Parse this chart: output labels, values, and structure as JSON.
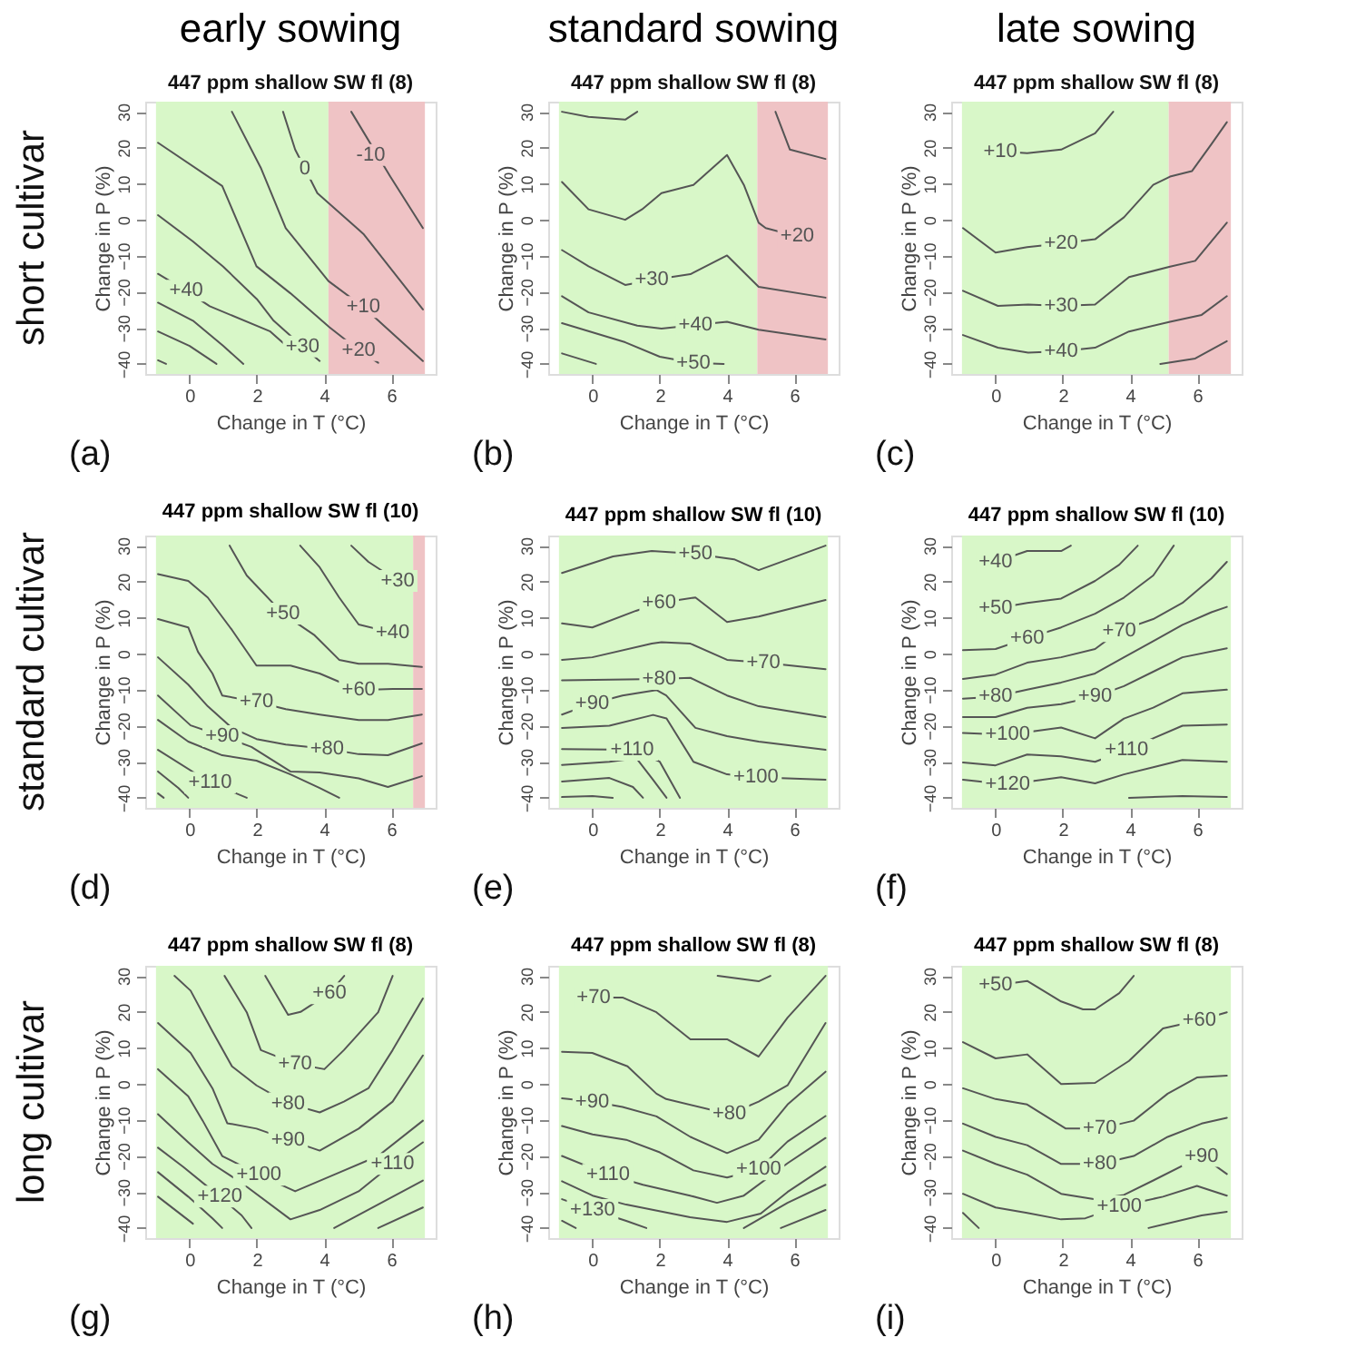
{
  "chart_data": [
    {
      "type": "line",
      "title": "early sowing",
      "subtitle": "447 ppm shallow SW fl (8)",
      "xlabel": "Change in T (°C)",
      "ylabel": "Change in P (%)",
      "xlim": [
        -1.32,
        7.32
      ],
      "ylim": [
        -42.8,
        32.8
      ],
      "xticks": [
        0,
        2,
        4,
        6
      ],
      "yticks": [
        -40,
        -30,
        -20,
        -10,
        0,
        10,
        20,
        30
      ],
      "bands": [
        {
          "axis": "x",
          "from": -1,
          "to": 4.13,
          "color": "#d8f7c8"
        },
        {
          "axis": "x",
          "from": 4.13,
          "to": 7,
          "color": "#efc3c5"
        }
      ],
      "series": [
        {
          "color": "#555555",
          "x": [
            4.81,
            5.97,
            6.94
          ],
          "values": [
            30,
            12,
            -2.3
          ]
        },
        {
          "color": "#555555",
          "x": [
            2.78,
            3.14,
            3.43,
            3.8,
            5.17,
            6.94
          ],
          "values": [
            30,
            19.5,
            14.2,
            7.4,
            -3.9,
            -24.9
          ]
        },
        {
          "color": "#555555",
          "x": [
            1.26,
            2.13,
            2.86,
            4.13,
            5.17,
            6.94
          ],
          "values": [
            30,
            14.2,
            -2.3,
            -17,
            -24.2,
            -39.2
          ]
        },
        {
          "color": "#555555",
          "x": [
            -0.94,
            0.97,
            1.23,
            1.99,
            3.0,
            4.16,
            5.03,
            5.61
          ],
          "values": [
            21.4,
            9.4,
            3.7,
            -12.9,
            -20.4,
            -29.8,
            -36.2,
            -39.7
          ]
        },
        {
          "color": "#555555",
          "x": [
            -0.94,
            0.1,
            1.0,
            2.0,
            2.5,
            3.36,
            3.87
          ],
          "values": [
            1.3,
            -6,
            -13,
            -22,
            -28,
            -35.2,
            -39.2
          ]
        },
        {
          "color": "#555555",
          "x": [
            -0.94,
            -0.1,
            0.6,
            2.4,
            3.0
          ],
          "values": [
            -15,
            -19.7,
            -24,
            -31,
            -36
          ]
        },
        {
          "color": "#555555",
          "x": [
            -0.94,
            0.1,
            1.0,
            1.6
          ],
          "values": [
            -23,
            -28,
            -35,
            -40
          ]
        },
        {
          "color": "#555555",
          "x": [
            -0.94,
            0,
            0.8
          ],
          "values": [
            -31,
            -35,
            -40
          ]
        },
        {
          "color": "#555555",
          "x": [
            -0.94,
            -0.7
          ],
          "values": [
            -39,
            -40
          ]
        }
      ],
      "annotations": [
        {
          "text": "-10",
          "x": 5.39,
          "y": 18
        },
        {
          "text": "0",
          "x": 3.43,
          "y": 14.2
        },
        {
          "text": "+10",
          "x": 5.17,
          "y": -24.2
        },
        {
          "text": "+20",
          "x": 5.03,
          "y": -36.2
        },
        {
          "text": "+30",
          "x": 3.36,
          "y": -35.2
        },
        {
          "text": "+40",
          "x": -0.1,
          "y": -19.7
        },
        "(a)",
        "short cultivar"
      ]
    },
    {
      "type": "line",
      "title": "standard sowing",
      "subtitle": "447 ppm shallow SW fl (8)",
      "xlabel": "Change in T (°C)",
      "ylabel": "Change in P (%)",
      "xlim": [
        -1.32,
        7.32
      ],
      "ylim": [
        -42.8,
        32.8
      ],
      "xticks": [
        0,
        2,
        4,
        6
      ],
      "yticks": [
        -40,
        -30,
        -20,
        -10,
        0,
        10,
        20,
        30
      ],
      "bands": [
        {
          "axis": "x",
          "from": -1,
          "to": 4.9,
          "color": "#d8f7c8"
        },
        {
          "axis": "x",
          "from": 4.9,
          "to": 7,
          "color": "#efc3c5"
        }
      ],
      "series": [
        {
          "color": "#555555",
          "x": [
            -0.91,
            -0.12,
            0.97,
            1.33
          ],
          "values": [
            30,
            28.6,
            27.8,
            30
          ]
        },
        {
          "color": "#555555",
          "x": [
            -0.91,
            -0.12,
            0.97,
            1.47,
            2.05,
            3.0,
            4.0,
            4.5,
            4.94,
            5.15,
            6.09
          ],
          "values": [
            10.5,
            2.9,
            0,
            2.9,
            7.4,
            9.7,
            18,
            9.7,
            -0.8,
            -2.3,
            -4.6
          ]
        },
        {
          "color": "#555555",
          "x": [
            5.44,
            5.87,
            6.93
          ],
          "values": [
            30,
            19.5,
            16.9
          ]
        },
        {
          "color": "#555555",
          "x": [
            -0.91,
            -0.12,
            0.97,
            1.76,
            2.91,
            4.0,
            4.94,
            6.93
          ],
          "values": [
            -8.4,
            -12.9,
            -18.1,
            -16.7,
            -15.1,
            -9.9,
            -18.6,
            -21.6
          ]
        },
        {
          "color": "#555555",
          "x": [
            -0.91,
            -0.12,
            1.33,
            2.05,
            3.06,
            4.0,
            4.94,
            6.93
          ],
          "values": [
            -21.2,
            -25.7,
            -29.4,
            -30.2,
            -29.2,
            -28.3,
            -30.5,
            -33.2
          ]
        },
        {
          "color": "#555555",
          "x": [
            -0.91,
            0.97,
            2.0,
            3.0,
            3.9
          ],
          "values": [
            -28.7,
            -34,
            -38,
            -39.7,
            -40
          ]
        },
        {
          "color": "#555555",
          "x": [
            -0.91,
            0.1
          ],
          "values": [
            -37.1,
            -40
          ]
        }
      ],
      "annotations": [
        {
          "text": "+20",
          "x": 6.09,
          "y": -4.6
        },
        {
          "text": "+30",
          "x": 1.76,
          "y": -16.7
        },
        {
          "text": "+40",
          "x": 3.06,
          "y": -29.2
        },
        {
          "text": "+50",
          "x": 3.0,
          "y": -39.7
        },
        "(b)"
      ]
    },
    {
      "type": "line",
      "title": "late sowing",
      "subtitle": "447 ppm shallow SW fl (8)",
      "xlabel": "Change in T (°C)",
      "ylabel": "Change in P (%)",
      "xlim": [
        -1.32,
        7.32
      ],
      "ylim": [
        -42.8,
        32.8
      ],
      "xticks": [
        0,
        2,
        4,
        6
      ],
      "yticks": [
        -40,
        -30,
        -20,
        -10,
        0,
        10,
        20,
        30
      ],
      "bands": [
        {
          "axis": "x",
          "from": -1,
          "to": 5.15,
          "color": "#d8f7c8"
        },
        {
          "axis": "x",
          "from": 5.15,
          "to": 7,
          "color": "#efc3c5"
        }
      ],
      "series": [
        {
          "color": "#555555",
          "x": [
            0.14,
            0.94,
            1.95,
            2.96,
            3.5
          ],
          "values": [
            19,
            18.5,
            19.5,
            24,
            30
          ]
        },
        {
          "color": "#555555",
          "x": [
            -0.97,
            0,
            0.94,
            1.95,
            2.96,
            3.82,
            4.69,
            5.19,
            5.84,
            6.42,
            6.88
          ],
          "values": [
            -2.3,
            -9.1,
            -7.6,
            -6.6,
            -5.4,
            0.7,
            9.7,
            12,
            13.5,
            21,
            27.1
          ]
        },
        {
          "color": "#555555",
          "x": [
            -0.97,
            0.07,
            0.97,
            1.95,
            2.96,
            3.97,
            5.19,
            5.94,
            6.88
          ],
          "values": [
            -19.7,
            -23.9,
            -23.5,
            -23.9,
            -23.5,
            -15.9,
            -13,
            -11.4,
            -0.8
          ]
        },
        {
          "color": "#555555",
          "x": [
            -0.97,
            0.07,
            0.97,
            1.95,
            2.96,
            3.97,
            5.19,
            6.13,
            6.88
          ],
          "values": [
            -32,
            -35.5,
            -36.9,
            -36.5,
            -35.5,
            -31,
            -28.3,
            -26.4,
            -21.2
          ]
        },
        {
          "color": "#555555",
          "x": [
            4.9,
            5.94,
            6.88
          ],
          "values": [
            -40,
            -38.5,
            -33.7
          ]
        }
      ],
      "annotations": [
        {
          "text": "+10",
          "x": 0.14,
          "y": 19
        },
        {
          "text": "+20",
          "x": 1.95,
          "y": -6.6
        },
        {
          "text": "+30",
          "x": 1.95,
          "y": -23.9
        },
        {
          "text": "+40",
          "x": 1.95,
          "y": -36.5
        },
        "(c)"
      ]
    },
    {
      "type": "line",
      "title": "447 ppm shallow SW fl (10)",
      "xlabel": "Change in T (°C)",
      "ylabel": "Change in P (%)",
      "xlim": [
        -1.32,
        7.32
      ],
      "ylim": [
        -42.8,
        32.8
      ],
      "xticks": [
        0,
        2,
        4,
        6
      ],
      "yticks": [
        -40,
        -30,
        -20,
        -10,
        0,
        10,
        20,
        30
      ],
      "bands": [
        {
          "axis": "x",
          "from": -1,
          "to": 6.65,
          "color": "#d8f7c8"
        },
        {
          "axis": "x",
          "from": 6.65,
          "to": 7,
          "color": "#efc3c5"
        }
      ],
      "series": [
        {
          "color": "#555555",
          "x": [
            4.81,
            5.32,
            6.19
          ],
          "values": [
            30,
            25.5,
            20.2
          ]
        },
        {
          "color": "#555555",
          "x": [
            3.29,
            3.87,
            4.45,
            5.03,
            6.04
          ],
          "values": [
            30,
            24,
            15.6,
            8.1,
            5.8
          ]
        },
        {
          "color": "#555555",
          "x": [
            1.19,
            1.7,
            2.78,
            3.72,
            4.45,
            5.03,
            5.9,
            6.91
          ],
          "values": [
            30,
            21.7,
            11.1,
            5.1,
            -1.7,
            -2.8,
            -2.8,
            -3.7
          ]
        },
        {
          "color": "#555555",
          "x": [
            -0.94,
            -0.04,
            0.54,
            1.26,
            1.99,
            3.0,
            3.87,
            5.03,
            6.04,
            6.91
          ],
          "values": [
            22.1,
            20.2,
            15.6,
            6.6,
            -3.3,
            -3.3,
            -5.5,
            -10.1,
            -9.8,
            -9.8
          ]
        },
        {
          "color": "#555555",
          "x": [
            -0.94,
            -0.04,
            0.25,
            0.68,
            0.97,
            1.99,
            2.86,
            3.87,
            5.03,
            5.9,
            6.91
          ],
          "values": [
            9.6,
            7.3,
            0.5,
            -5.5,
            -11.6,
            -13.4,
            -15.4,
            -16.9,
            -18.4,
            -18.4,
            -16.9
          ]
        },
        {
          "color": "#555555",
          "x": [
            -0.94,
            -0.04,
            0.54,
            1.26,
            1.99,
            2.86,
            4.09,
            5.03,
            5.9,
            6.91
          ],
          "values": [
            -1,
            -8.6,
            -14.6,
            -20.6,
            -23.7,
            -25.2,
            -26.4,
            -27.9,
            -28.2,
            -24.9
          ]
        },
        {
          "color": "#555555",
          "x": [
            -0.94,
            0.03,
            0.97,
            1.84,
            3.0,
            3.87,
            5.03,
            5.9,
            6.91
          ],
          "values": [
            -11.6,
            -19.9,
            -22.9,
            -25.9,
            -32.7,
            -33,
            -34.6,
            -37,
            -34
          ]
        },
        {
          "color": "#555555",
          "x": [
            -0.94,
            -0.04,
            0.97,
            1.99,
            3.0,
            3.87,
            4.45
          ],
          "values": [
            -18.4,
            -24.4,
            -28.2,
            -29.7,
            -33.5,
            -37.3,
            -40
          ]
        },
        {
          "color": "#555555",
          "x": [
            -0.94,
            0.61,
            1.7
          ],
          "values": [
            -26.7,
            -35.8,
            -40
          ]
        },
        {
          "color": "#555555",
          "x": [
            -0.94,
            -0.33,
            -0.04
          ],
          "values": [
            -32.7,
            -37.3,
            -40
          ]
        },
        {
          "color": "#555555",
          "x": [
            -0.94,
            -0.77
          ],
          "values": [
            -38.8,
            -40
          ]
        }
      ],
      "annotations": [
        {
          "text": "+30",
          "x": 6.19,
          "y": 20.2
        },
        {
          "text": "+40",
          "x": 6.04,
          "y": 5.8
        },
        {
          "text": "+50",
          "x": 2.78,
          "y": 11.1
        },
        {
          "text": "+60",
          "x": 5.03,
          "y": -10.1
        },
        {
          "text": "+70",
          "x": 1.99,
          "y": -13.4
        },
        {
          "text": "+80",
          "x": 4.09,
          "y": -26.4
        },
        {
          "text": "+90",
          "x": 0.97,
          "y": -22.9
        },
        {
          "text": "+110",
          "x": 0.61,
          "y": -35.8
        },
        "(d)",
        "standard cultivar"
      ]
    },
    {
      "type": "line",
      "title": "447 ppm shallow SW fl (10)",
      "xlabel": "Change in T (°C)",
      "ylabel": "Change in P (%)",
      "xlim": [
        -1.32,
        7.32
      ],
      "ylim": [
        -42.8,
        32.8
      ],
      "xticks": [
        0,
        2,
        4,
        6
      ],
      "yticks": [
        -40,
        -30,
        -20,
        -10,
        0,
        10,
        20,
        30
      ],
      "bands": [
        {
          "axis": "x",
          "from": -1,
          "to": 7,
          "color": "#d8f7c8"
        }
      ],
      "series": [
        {
          "color": "#555555",
          "x": [
            -0.91,
            0.61,
            1.76,
            3.06,
            4.21,
            4.94,
            6.93
          ],
          "values": [
            22.4,
            27,
            28.5,
            27.7,
            26.2,
            23.2,
            30
          ]
        },
        {
          "color": "#555555",
          "x": [
            -0.91,
            -0.01,
            1.29,
            1.98,
            3.06,
            4.0,
            4.94,
            6.93
          ],
          "values": [
            8.4,
            7.3,
            11.9,
            14.1,
            15.6,
            8.8,
            10.3,
            14.9
          ]
        },
        {
          "color": "#555555",
          "x": [
            -0.91,
            -0.01,
            1.76,
            2.05,
            2.91,
            4.0,
            5.08,
            6.93
          ],
          "values": [
            -1.7,
            -1,
            2.8,
            3.2,
            2.8,
            -1.7,
            -2.5,
            -4.3
          ]
        },
        {
          "color": "#555555",
          "x": [
            -0.91,
            1.98,
            2.91,
            4.0,
            4.94,
            6.93
          ],
          "values": [
            -7.4,
            -7,
            -6.7,
            -11.6,
            -14.6,
            -17.6
          ]
        },
        {
          "color": "#555555",
          "x": [
            -0.91,
            -0.01,
            0.89,
            1.9,
            2.19,
            3.06,
            4.0,
            4.94,
            6.93
          ],
          "values": [
            -16.9,
            -13.8,
            -11.6,
            -10.1,
            -11.6,
            -20.6,
            -22.9,
            -24.4,
            -26.7
          ]
        },
        {
          "color": "#555555",
          "x": [
            -0.91,
            0.5,
            1.8,
            2.2,
            3.0,
            4.0,
            4.86,
            6.93
          ],
          "values": [
            -20.6,
            -20,
            -17,
            -18,
            -30,
            -33.5,
            -34.3,
            -35
          ]
        },
        {
          "color": "#555555",
          "x": [
            -0.91,
            1.18,
            2.0,
            2.6
          ],
          "values": [
            -26.5,
            -26.7,
            -30,
            -40
          ]
        },
        {
          "color": "#555555",
          "x": [
            -0.91,
            0.5,
            1.3,
            1.8,
            2.2
          ],
          "values": [
            -30.9,
            -30,
            -29,
            -35,
            -40
          ]
        },
        {
          "color": "#555555",
          "x": [
            -0.91,
            0.5,
            1.2,
            1.5
          ],
          "values": [
            -35.5,
            -34.5,
            -37,
            -40
          ]
        },
        {
          "color": "#555555",
          "x": [
            -0.91,
            0,
            0.6
          ],
          "values": [
            -39.8,
            -39.5,
            -40
          ]
        }
      ],
      "annotations": [
        {
          "text": "+50",
          "x": 3.06,
          "y": 27.7
        },
        {
          "text": "+60",
          "x": 1.98,
          "y": 14.1
        },
        {
          "text": "+70",
          "x": 5.08,
          "y": -2.5
        },
        {
          "text": "+80",
          "x": 1.98,
          "y": -7
        },
        {
          "text": "+90",
          "x": -0.01,
          "y": -13.8
        },
        {
          "text": "+100",
          "x": 4.86,
          "y": -34.3
        },
        {
          "text": "+110",
          "x": 1.18,
          "y": -26.7
        },
        "(e)"
      ]
    },
    {
      "type": "line",
      "title": "447 ppm shallow SW fl (10)",
      "xlabel": "Change in T (°C)",
      "ylabel": "Change in P (%)",
      "xlim": [
        -1.32,
        7.32
      ],
      "ylim": [
        -42.8,
        32.8
      ],
      "xticks": [
        0,
        2,
        4,
        6
      ],
      "yticks": [
        -40,
        -30,
        -20,
        -10,
        0,
        10,
        20,
        30
      ],
      "bands": [
        {
          "axis": "x",
          "from": -1,
          "to": 7,
          "color": "#d8f7c8"
        }
      ],
      "series": [
        {
          "color": "#555555",
          "x": [
            0,
            0.94,
            1.95,
            2.24
          ],
          "values": [
            25.5,
            28.5,
            28.5,
            30
          ]
        },
        {
          "color": "#555555",
          "x": [
            0,
            0.94,
            1.95,
            2.96,
            3.68,
            4.23
          ],
          "values": [
            12.6,
            14.1,
            15.3,
            20.2,
            24.7,
            30
          ]
        },
        {
          "color": "#555555",
          "x": [
            -0.97,
            0,
            0.94,
            1.95,
            2.96,
            3.82,
            4.69,
            5.3
          ],
          "values": [
            1,
            1.3,
            4.3,
            7.3,
            11.1,
            15.6,
            21.7,
            30
          ]
        },
        {
          "color": "#555555",
          "x": [
            -0.97,
            0,
            0.94,
            1.95,
            2.96,
            3.68,
            4.69,
            5.56,
            6.42,
            6.88
          ],
          "values": [
            -7,
            -5.8,
            -2.5,
            -1,
            1.3,
            6.3,
            9.6,
            14.1,
            20.9,
            25.5
          ]
        },
        {
          "color": "#555555",
          "x": [
            -0.97,
            0,
            0.94,
            1.95,
            2.96,
            3.82,
            4.69,
            5.56,
            6.42,
            6.88
          ],
          "values": [
            -12.5,
            -11.9,
            -10,
            -8,
            -5.5,
            -1,
            3.5,
            8,
            11.5,
            13
          ]
        },
        {
          "color": "#555555",
          "x": [
            -0.97,
            0,
            0.94,
            1.95,
            2.96,
            3.82,
            4.69,
            5.56,
            6.88
          ],
          "values": [
            -17.6,
            -17.6,
            -15,
            -14,
            -11.9,
            -9,
            -5,
            -1,
            1.5
          ]
        },
        {
          "color": "#555555",
          "x": [
            -0.97,
            0.36,
            1.95,
            2.96,
            3.82,
            4.69,
            5.56,
            6.88
          ],
          "values": [
            -22,
            -22.5,
            -20.5,
            -23.5,
            -18,
            -15,
            -11,
            -10
          ]
        },
        {
          "color": "#555555",
          "x": [
            -0.97,
            0,
            0.94,
            1.95,
            2.96,
            3.9,
            4.69,
            5.56,
            6.88
          ],
          "values": [
            -30.2,
            -31,
            -28,
            -28.5,
            -30,
            -26.7,
            -23.5,
            -20,
            -19.7
          ]
        },
        {
          "color": "#555555",
          "x": [
            -0.97,
            0.36,
            1.95,
            2.96,
            3.82,
            4.69,
            5.56,
            6.88
          ],
          "values": [
            -35,
            -36.3,
            -34.3,
            -36,
            -33.5,
            -31.5,
            -29.5,
            -30
          ]
        },
        {
          "color": "#555555",
          "x": [
            3.97,
            5.56,
            6.88
          ],
          "values": [
            -40,
            -39.5,
            -39.8
          ]
        }
      ],
      "annotations": [
        {
          "text": "+40",
          "x": 0,
          "y": 25.5
        },
        {
          "text": "+50",
          "x": 0,
          "y": 12.6
        },
        {
          "text": "+60",
          "x": 0.94,
          "y": 4.3
        },
        {
          "text": "+70",
          "x": 3.68,
          "y": 6.3
        },
        {
          "text": "+80",
          "x": 0,
          "y": -11.9
        },
        {
          "text": "+90",
          "x": 2.96,
          "y": -11.9
        },
        {
          "text": "+100",
          "x": 0.36,
          "y": -22.5
        },
        {
          "text": "+110",
          "x": 3.9,
          "y": -26.7
        },
        {
          "text": "+120",
          "x": 0.36,
          "y": -36.3
        },
        "(f)"
      ]
    },
    {
      "type": "line",
      "title": "447 ppm shallow SW fl (8)",
      "xlabel": "Change in T (°C)",
      "ylabel": "Change in P (%)",
      "xlim": [
        -1.32,
        7.32
      ],
      "ylim": [
        -42.8,
        32.8
      ],
      "xticks": [
        0,
        2,
        4,
        6
      ],
      "yticks": [
        -40,
        -30,
        -20,
        -10,
        0,
        10,
        20,
        30
      ],
      "bands": [
        {
          "axis": "x",
          "from": -1,
          "to": 7,
          "color": "#d8f7c8"
        }
      ],
      "series": [
        {
          "color": "#555555",
          "x": [
            2.25,
            2.93,
            3.3,
            4.16,
            4.6
          ],
          "values": [
            30,
            19.2,
            20,
            25.2,
            30
          ]
        },
        {
          "color": "#555555",
          "x": [
            1.04,
            1.7,
            2.12,
            3.14,
            4.01,
            4.59,
            5.61,
            6.04
          ],
          "values": [
            30,
            19.9,
            9.4,
            5.6,
            4.1,
            9.4,
            19.9,
            30
          ]
        },
        {
          "color": "#555555",
          "x": [
            -0.45,
            0.03,
            0.68,
            1.26,
            1.99,
            2.93,
            3.87,
            4.59,
            5.32,
            6.04,
            6.94
          ],
          "values": [
            30,
            25.9,
            14.6,
            4.9,
            -0.4,
            -5.4,
            -7.9,
            -4.9,
            -1.2,
            9.4,
            23.7
          ]
        },
        {
          "color": "#555555",
          "x": [
            -0.94,
            0.03,
            0.68,
            1.12,
            1.99,
            2.93,
            3.87,
            5.03,
            6.04,
            6.94
          ],
          "values": [
            16.9,
            8.6,
            -1.2,
            -10.9,
            -12.4,
            -15.5,
            -18.5,
            -12.4,
            -4.9,
            7.9
          ]
        },
        {
          "color": "#555555",
          "x": [
            -0.94,
            -0.04,
            0.39,
            0.97,
            2.06,
            3.14,
            4.3,
            5.61,
            6.94
          ],
          "values": [
            4.1,
            -3.4,
            -10.2,
            -20,
            -25.2,
            -29.8,
            -25.2,
            -20,
            -10.2
          ]
        },
        {
          "color": "#555555",
          "x": [
            -0.94,
            -0.04,
            0.68,
            1.55,
            3.0,
            3.87,
            5.03,
            6.04,
            6.94
          ],
          "values": [
            -8.4,
            -16.2,
            -22.2,
            -27.5,
            -37.6,
            -35,
            -29.8,
            -22.2,
            -16.2
          ]
        },
        {
          "color": "#555555",
          "x": [
            -0.94,
            -0.19,
            0.9,
            1.55,
            1.84
          ],
          "values": [
            -17.7,
            -23,
            -31.3,
            -36.5,
            -40
          ]
        },
        {
          "color": "#555555",
          "x": [
            -0.94,
            -0.04,
            0.68,
            0.97
          ],
          "values": [
            -24.5,
            -31.3,
            -37.3,
            -40
          ]
        },
        {
          "color": "#555555",
          "x": [
            -0.94,
            0.1
          ],
          "values": [
            -31.3,
            -38.8
          ]
        },
        {
          "color": "#555555",
          "x": [
            4.3,
            6.94
          ],
          "values": [
            -40,
            -26.8
          ]
        },
        {
          "color": "#555555",
          "x": [
            5.61,
            6.94
          ],
          "values": [
            -40,
            -34.3
          ]
        }
      ],
      "annotations": [
        {
          "text": "+60",
          "x": 4.16,
          "y": 25.2
        },
        {
          "text": "+70",
          "x": 3.14,
          "y": 5.6
        },
        {
          "text": "+80",
          "x": 2.93,
          "y": -5.4
        },
        {
          "text": "+90",
          "x": 2.93,
          "y": -15.5
        },
        {
          "text": "+100",
          "x": 2.06,
          "y": -25.2
        },
        {
          "text": "+110",
          "x": 6.04,
          "y": -22.2
        },
        {
          "text": "+120",
          "x": 0.9,
          "y": -31.3
        },
        "(g)",
        "long cultivar"
      ]
    },
    {
      "type": "line",
      "title": "447 ppm shallow SW fl (8)",
      "xlabel": "Change in T (°C)",
      "ylabel": "Change in P (%)",
      "xlim": [
        -1.32,
        7.32
      ],
      "ylim": [
        -42.8,
        32.8
      ],
      "xticks": [
        0,
        2,
        4,
        6
      ],
      "yticks": [
        -40,
        -30,
        -20,
        -10,
        0,
        10,
        20,
        30
      ],
      "bands": [
        {
          "axis": "x",
          "from": -1,
          "to": 7,
          "color": "#d8f7c8"
        }
      ],
      "series": [
        {
          "color": "#555555",
          "x": [
            0.03,
            0.89,
            1.9,
            2.91,
            4.0,
            4.94,
            5.8,
            6.93
          ],
          "values": [
            24,
            24,
            19.9,
            12.4,
            12.4,
            7.6,
            18.4,
            30
          ]
        },
        {
          "color": "#555555",
          "x": [
            3.72,
            4.94,
            5.29
          ],
          "values": [
            30,
            28.5,
            30
          ]
        },
        {
          "color": "#555555",
          "x": [
            -0.91,
            -0.01,
            1.04,
            1.9,
            2.19,
            4.07,
            4.94,
            5.8,
            6.93
          ],
          "values": [
            8.9,
            8.6,
            4.9,
            -2.7,
            -4.2,
            -8.4,
            -4.9,
            -0.4,
            16.9
          ]
        },
        {
          "color": "#555555",
          "x": [
            -0.91,
            -0.01,
            0.89,
            1.9,
            2.91,
            4.0,
            4.94,
            5.8,
            6.93
          ],
          "values": [
            -4,
            -4.9,
            -6.4,
            -9,
            -14.7,
            -19.2,
            -15.5,
            -5.7,
            3.4
          ]
        },
        {
          "color": "#555555",
          "x": [
            -0.91,
            0,
            1.0,
            2.0,
            3.0,
            4.0,
            4.94,
            5.8,
            6.93
          ],
          "values": [
            -11.7,
            -14,
            -15.5,
            -19,
            -24,
            -26,
            -23.7,
            -16,
            -8.9
          ]
        },
        {
          "color": "#555555",
          "x": [
            -0.91,
            0.46,
            1.5,
            2.9,
            3.7,
            4.5,
            5.8,
            6.93
          ],
          "values": [
            -20,
            -25.2,
            -28,
            -31,
            -33,
            -31,
            -22,
            -15
          ]
        },
        {
          "color": "#555555",
          "x": [
            -0.91,
            0,
            1.0,
            2.9,
            4.0,
            5.0,
            5.8,
            6.93
          ],
          "values": [
            -27,
            -31,
            -33.5,
            -37,
            -38.3,
            -36,
            -30,
            -23
          ]
        },
        {
          "color": "#555555",
          "x": [
            -0.91,
            0,
            1.0,
            1.6
          ],
          "values": [
            -32,
            -35,
            -38,
            -40
          ]
        },
        {
          "color": "#555555",
          "x": [
            -0.91,
            -0.5
          ],
          "values": [
            -38,
            -40
          ]
        },
        {
          "color": "#555555",
          "x": [
            4.5,
            5.8,
            6.93
          ],
          "values": [
            -40,
            -33,
            -28
          ]
        },
        {
          "color": "#555555",
          "x": [
            5.6,
            6.93
          ],
          "values": [
            -40,
            -35
          ]
        }
      ],
      "annotations": [
        {
          "text": "+70",
          "x": 0.03,
          "y": 24
        },
        {
          "text": "+80",
          "x": 4.07,
          "y": -8.4
        },
        {
          "text": "+90",
          "x": -0.01,
          "y": -4.9
        },
        {
          "text": "+100",
          "x": 4.94,
          "y": -23.7
        },
        {
          "text": "+110",
          "x": 0.46,
          "y": -25.2
        },
        {
          "text": "+130",
          "x": 0,
          "y": -35
        },
        "(h)"
      ]
    },
    {
      "type": "line",
      "title": "447 ppm shallow SW fl (8)",
      "xlabel": "Change in T (°C)",
      "ylabel": "Change in P (%)",
      "xlim": [
        -1.32,
        7.32
      ],
      "ylim": [
        -42.8,
        32.8
      ],
      "xticks": [
        0,
        2,
        4,
        6
      ],
      "yticks": [
        -40,
        -30,
        -20,
        -10,
        0,
        10,
        20,
        30
      ],
      "bands": [
        {
          "axis": "x",
          "from": -1,
          "to": 7,
          "color": "#d8f7c8"
        }
      ],
      "series": [
        {
          "color": "#555555",
          "x": [
            0,
            0.94,
            1.95,
            2.6,
            2.96,
            3.68,
            4.11
          ],
          "values": [
            27.4,
            28.6,
            22.9,
            20.7,
            20.7,
            25.2,
            30
          ]
        },
        {
          "color": "#555555",
          "x": [
            -0.97,
            0,
            0.94,
            1.95,
            2.96,
            3.97,
            4.98,
            6.06,
            6.88
          ],
          "values": [
            11.6,
            7.1,
            8.2,
            0,
            0.3,
            6.4,
            15.4,
            17.7,
            19.9
          ]
        },
        {
          "color": "#555555",
          "x": [
            -0.97,
            0,
            0.94,
            2.09,
            3.1,
            4.11,
            5.12,
            5.99,
            6.88
          ],
          "values": [
            -1.2,
            -4.2,
            -5.7,
            -12.4,
            -12.4,
            -10.2,
            -2.7,
            1.8,
            2.3
          ]
        },
        {
          "color": "#555555",
          "x": [
            -0.97,
            0,
            0.94,
            1.95,
            3.1,
            4.11,
            5.12,
            6.13,
            6.88
          ],
          "values": [
            -11,
            -14.7,
            -17,
            -22.2,
            -22.2,
            -20,
            -14.7,
            -11,
            -9.4
          ]
        },
        {
          "color": "#555555",
          "x": [
            -0.97,
            0,
            0.94,
            1.95,
            2.96,
            3.82,
            4.69,
            6.13,
            6.88
          ],
          "values": [
            -18.5,
            -22.2,
            -25.2,
            -30.5,
            -32,
            -30.8,
            -26.8,
            -20,
            -25
          ]
        },
        {
          "color": "#555555",
          "x": [
            -0.97,
            0,
            0.94,
            1.95,
            2.67,
            3.68,
            4.98,
            5.99,
            6.88
          ],
          "values": [
            -30.5,
            -34.3,
            -35.8,
            -37.6,
            -37.3,
            -34,
            -31.3,
            -28.3,
            -31
          ]
        },
        {
          "color": "#555555",
          "x": [
            -0.97,
            -0.5
          ],
          "values": [
            -35.8,
            -40
          ]
        },
        {
          "color": "#555555",
          "x": [
            4.55,
            6.13,
            6.88
          ],
          "values": [
            -40,
            -36.5,
            -35.5
          ]
        }
      ],
      "annotations": [
        {
          "text": "+50",
          "x": 0,
          "y": 27.4
        },
        {
          "text": "+60",
          "x": 6.06,
          "y": 17.7
        },
        {
          "text": "+70",
          "x": 3.1,
          "y": -12.4
        },
        {
          "text": "+80",
          "x": 3.1,
          "y": -22.2
        },
        {
          "text": "+90",
          "x": 6.13,
          "y": -20
        },
        {
          "text": "+100",
          "x": 3.68,
          "y": -34
        },
        "(i)"
      ]
    }
  ]
}
